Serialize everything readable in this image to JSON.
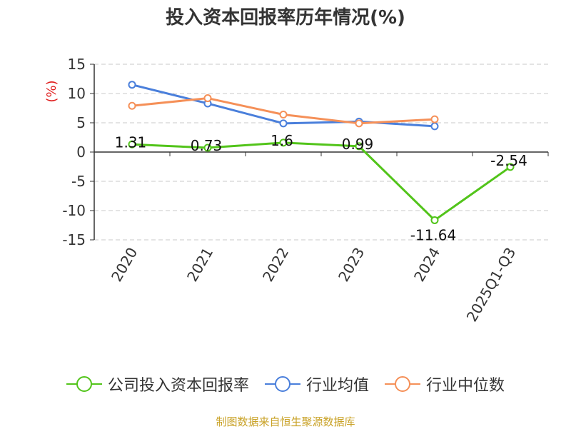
{
  "chart_data": {
    "type": "line",
    "title": "投入资本回报率历年情况(%)",
    "ylabel": "(%)",
    "categories": [
      "2020",
      "2021",
      "2022",
      "2023",
      "2024",
      "2025Q1-Q3"
    ],
    "yticks": [
      15,
      10,
      5,
      0,
      -5,
      -10,
      -15
    ],
    "ylim": [
      -15,
      15
    ],
    "grid": true,
    "legend_position": "bottom",
    "series": [
      {
        "name": "公司投入资本回报率",
        "color": "#52c41a",
        "values": [
          1.31,
          0.73,
          1.6,
          0.99,
          -11.64,
          -2.54
        ],
        "labels": [
          "1.31",
          "0.73",
          "1.6",
          "0.99",
          "-11.64",
          "-2.54"
        ]
      },
      {
        "name": "行业均值",
        "color": "#4a7fdb",
        "values": [
          11.5,
          8.3,
          4.9,
          5.2,
          4.4,
          null
        ]
      },
      {
        "name": "行业中位数",
        "color": "#f59058",
        "values": [
          7.9,
          9.2,
          6.4,
          4.9,
          5.6,
          null
        ]
      }
    ]
  },
  "source_text": "制图数据来自恒生聚源数据库"
}
